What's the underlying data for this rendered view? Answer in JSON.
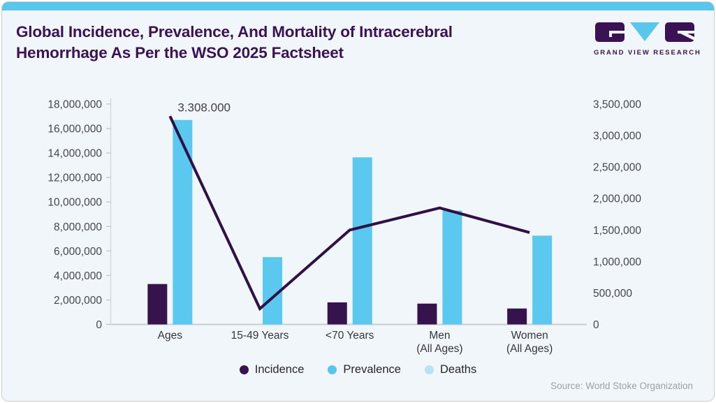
{
  "header": {
    "title_line1": "Global Incidence, Prevalence, And Mortality of Intracerebral",
    "title_line2": "Hemorrhage As Per the WSO 2025 Factsheet",
    "logo_text": "GRAND VIEW RESEARCH"
  },
  "source_note": "Source: World Stoke Organization",
  "colors": {
    "accent_bar": "#58c7ea",
    "card_background": "#f0f6f9",
    "title_purple": "#3b1254",
    "incidence": "#36134d",
    "prevalence": "#5bc8f0",
    "deaths_line": "#2f1147",
    "deaths_legend": "#b9e2f8",
    "axis_gray": "#c9ced3"
  },
  "legend": {
    "items": [
      {
        "label": "Incidence",
        "color": "#36134d"
      },
      {
        "label": "Prevalence",
        "color": "#55c6ef"
      },
      {
        "label": "Deaths",
        "color": "#b9e2f8"
      }
    ]
  },
  "chart_data": {
    "type": "bar",
    "subtype": "combo-bar-line-dual-axis",
    "title": "Global Incidence, Prevalence, And Mortality of Intracerebral Hemorrhage As Per the WSO 2025 Factsheet",
    "categories": [
      [
        "Ages"
      ],
      [
        "15-49 Years"
      ],
      [
        "<70 Years"
      ],
      [
        "Men",
        "(All Ages)"
      ],
      [
        "Women",
        "(All Ages)"
      ]
    ],
    "series": [
      {
        "name": "Incidence",
        "type": "bar",
        "axis": "left",
        "color": "#36134d",
        "values": [
          3300000,
          null,
          1800000,
          1700000,
          1300000
        ]
      },
      {
        "name": "Prevalence",
        "type": "bar",
        "axis": "left",
        "color": "#5bc8f0",
        "values": [
          16700000,
          5500000,
          13650000,
          9300000,
          7250000
        ]
      },
      {
        "name": "Deaths",
        "type": "line",
        "axis": "right",
        "color": "#2f1147",
        "values": [
          3308000,
          250000,
          1500000,
          1850000,
          1460000
        ]
      }
    ],
    "annotation": {
      "text": "3.308.000",
      "series": "Deaths",
      "category_index": 0
    },
    "left_axis": {
      "min": 0,
      "max": 18000000,
      "step": 2000000
    },
    "right_axis": {
      "min": 0,
      "max": 3500000,
      "step": 500000
    },
    "grid": false,
    "legend_position": "bottom"
  }
}
